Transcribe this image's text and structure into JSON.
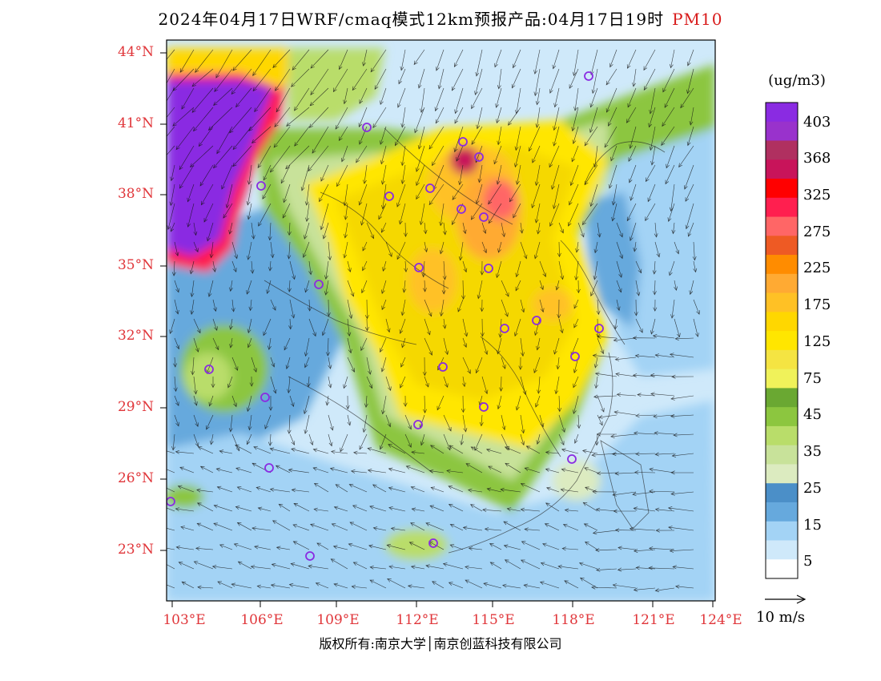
{
  "title": {
    "main": "2024年04月17日WRF/cmaq模式12km预报产品:04月17日19时",
    "pollutant": "PM10"
  },
  "lat_labels": [
    "44°N",
    "41°N",
    "38°N",
    "35°N",
    "32°N",
    "29°N",
    "26°N",
    "23°N"
  ],
  "lon_labels": [
    "103°E",
    "106°E",
    "109°E",
    "112°E",
    "115°E",
    "118°E",
    "121°E",
    "124°E"
  ],
  "legend": {
    "unit": "(ug/m3)",
    "labels": [
      "403",
      "368",
      "325",
      "275",
      "225",
      "175",
      "125",
      "75",
      "45",
      "35",
      "25",
      "15",
      "5"
    ],
    "colors": [
      "#8a2be2",
      "#9932cc",
      "#b03060",
      "#c8145a",
      "#ff0000",
      "#ff1f4f",
      "#ff6666",
      "#ee5a24",
      "#ff8c00",
      "#ffaa33",
      "#ffc125",
      "#ffd700",
      "#ffe600",
      "#f5e442",
      "#f0f25a",
      "#6aa832",
      "#8cc63f",
      "#b9dd6a",
      "#c8e29a",
      "#dcebc0",
      "#4b8fc8",
      "#66a9dd",
      "#a3d3f5",
      "#cfe9fa",
      "#ffffff"
    ]
  },
  "wind_reference": {
    "label": "10 m/s"
  },
  "copyright": "版权所有:南京大学│南京创蓝科技有限公司",
  "map_colors": {
    "ocean": "#cfe9fa",
    "high_purple": "#8a2be2",
    "stations": "#8a2be2"
  }
}
